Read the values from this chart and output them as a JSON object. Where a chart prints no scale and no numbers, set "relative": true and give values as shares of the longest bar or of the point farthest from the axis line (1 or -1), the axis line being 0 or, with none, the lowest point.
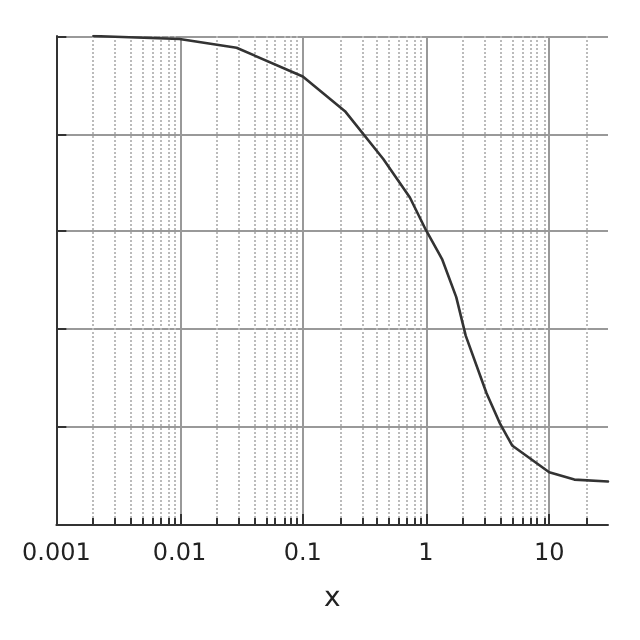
{
  "chart_data": {
    "type": "line",
    "xlabel": "x",
    "relative": true,
    "log": "x",
    "grid": true,
    "tick_labels": "x",
    "marker": "none",
    "line_style": "solid",
    "x": [
      0.002,
      0.01,
      0.029,
      0.1,
      0.22,
      0.45,
      0.74,
      1,
      1.35,
      1.76,
      2.1,
      3.1,
      4,
      5,
      10,
      16,
      30
    ],
    "xlim": [
      0.001,
      30
    ],
    "xticks": [
      0.001,
      0.01,
      0.1,
      1,
      10
    ],
    "series": [
      {
        "color": "#333333",
        "values": [
          1,
          0.994,
          0.976,
          0.917,
          0.846,
          0.748,
          0.669,
          0.602,
          0.543,
          0.465,
          0.386,
          0.268,
          0.205,
          0.161,
          0.106,
          0.091,
          0.087
        ]
      }
    ]
  }
}
